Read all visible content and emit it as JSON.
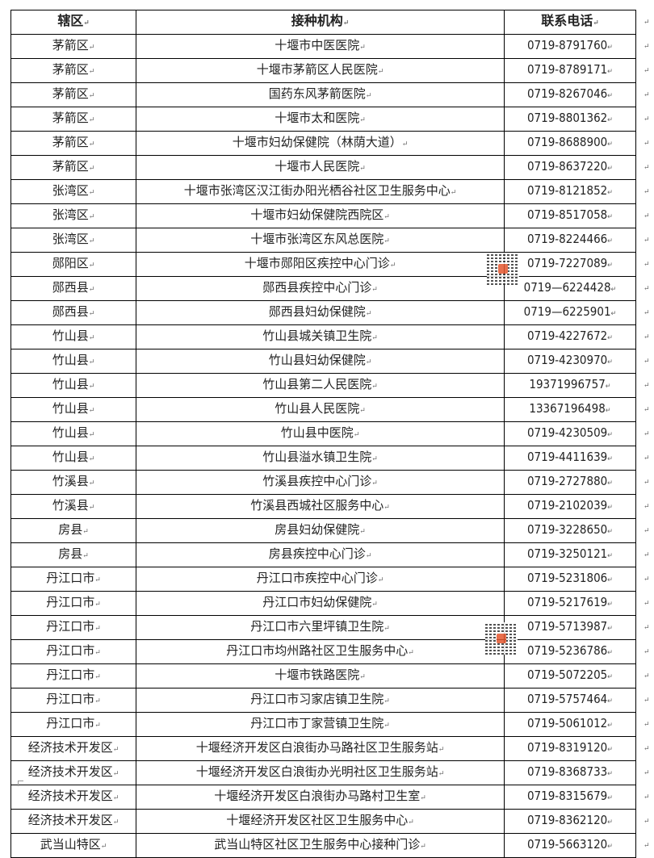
{
  "headers": [
    "辖区",
    "接种机构",
    "联系电话"
  ],
  "rows": [
    [
      "茅箭区",
      "十堰市中医医院",
      "0719-8791760"
    ],
    [
      "茅箭区",
      "十堰市茅箭区人民医院",
      "0719-8789171"
    ],
    [
      "茅箭区",
      "国药东风茅箭医院",
      "0719-8267046"
    ],
    [
      "茅箭区",
      "十堰市太和医院",
      "0719-8801362"
    ],
    [
      "茅箭区",
      "十堰市妇幼保健院（林荫大道）",
      "0719-8688900"
    ],
    [
      "茅箭区",
      "十堰市人民医院",
      "0719-8637220"
    ],
    [
      "张湾区",
      "十堰市张湾区汉江街办阳光栖谷社区卫生服务中心",
      "0719-8121852"
    ],
    [
      "张湾区",
      "十堰市妇幼保健院西院区",
      "0719-8517058"
    ],
    [
      "张湾区",
      "十堰市张湾区东风总医院",
      "0719-8224466"
    ],
    [
      "郧阳区",
      "十堰市郧阳区疾控中心门诊",
      "0719-7227089"
    ],
    [
      "郧西县",
      "郧西县疾控中心门诊",
      "0719—6224428"
    ],
    [
      "郧西县",
      "郧西县妇幼保健院",
      "0719—6225901"
    ],
    [
      "竹山县",
      "竹山县城关镇卫生院",
      "0719-4227672"
    ],
    [
      "竹山县",
      "竹山县妇幼保健院",
      "0719-4230970"
    ],
    [
      "竹山县",
      "竹山县第二人民医院",
      "19371996757"
    ],
    [
      "竹山县",
      "竹山县人民医院",
      "13367196498"
    ],
    [
      "竹山县",
      "竹山县中医院",
      "0719-4230509"
    ],
    [
      "竹山县",
      "竹山县溢水镇卫生院",
      "0719-4411639"
    ],
    [
      "竹溪县",
      "竹溪县疾控中心门诊",
      "0719-2727880"
    ],
    [
      "竹溪县",
      "竹溪县西城社区服务中心",
      "0719-2102039"
    ],
    [
      "房县",
      "房县妇幼保健院",
      "0719-3228650"
    ],
    [
      "房县",
      "房县疾控中心门诊",
      "0719-3250121"
    ],
    [
      "丹江口市",
      "丹江口市疾控中心门诊",
      "0719-5231806"
    ],
    [
      "丹江口市",
      "丹江口市妇幼保健院",
      "0719-5217619"
    ],
    [
      "丹江口市",
      "丹江口市六里坪镇卫生院",
      "0719-5713987"
    ],
    [
      "丹江口市",
      "丹江口市均州路社区卫生服务中心",
      "0719-5236786"
    ],
    [
      "丹江口市",
      "十堰市铁路医院",
      "0719-5072205"
    ],
    [
      "丹江口市",
      "丹江口市习家店镇卫生院",
      "0719-5757464"
    ],
    [
      "丹江口市",
      "丹江口市丁家营镇卫生院",
      "0719-5061012"
    ],
    [
      "经济技术开发区",
      "十堰经济开发区白浪街办马路社区卫生服务站",
      "0719-8319120"
    ],
    [
      "经济技术开发区",
      "十堰经济开发区白浪街办光明社区卫生服务站",
      "0719-8368733"
    ],
    [
      "经济技术开发区",
      "十堰经济开发区白浪街办马路村卫生室",
      "0719-8315679"
    ],
    [
      "经济技术开发区",
      "十堰经济开发区社区卫生服务中心",
      "0719-8362120"
    ],
    [
      "武当山特区",
      "武当山特区社区卫生服务中心接种门诊",
      "0719-5663120"
    ]
  ]
}
